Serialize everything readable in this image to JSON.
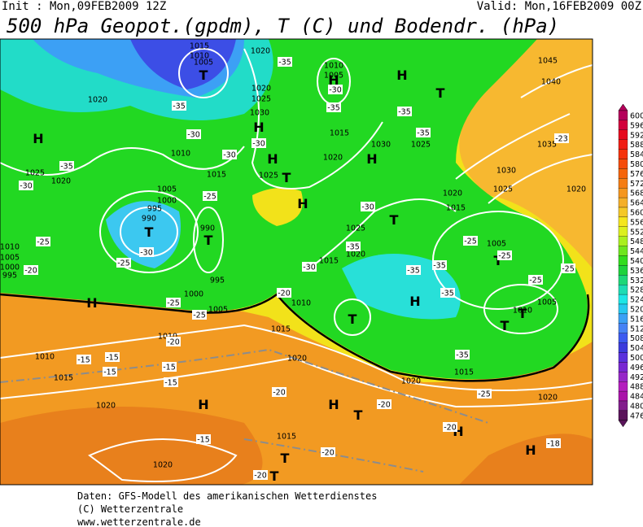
{
  "header": {
    "init": "Init : Mon,09FEB2009 12Z",
    "valid": "Valid: Mon,16FEB2009 00Z",
    "title": "500 hPa Geopot.(gpdm), T (C) und Bodendr. (hPa)"
  },
  "map": {
    "labels": [
      "H",
      "H",
      "T",
      "T",
      "T",
      "H",
      "H",
      "T",
      "H",
      "H",
      "H",
      "T",
      "H",
      "T",
      "T",
      "T",
      "H",
      "T",
      "T",
      "H",
      "H",
      "T",
      "H",
      "T",
      "T",
      "H",
      "1015",
      "1010",
      "1005",
      "1020",
      "1010",
      "1005",
      "1020",
      "1010",
      "1015",
      "1025",
      "1005",
      "1000",
      "995",
      "990",
      "990",
      "995",
      "1000",
      "1005",
      "1010",
      "1010",
      "1015",
      "1020",
      "1020",
      "1015",
      "1010",
      "1015",
      "1020",
      "1015",
      "1005",
      "1005",
      "1010",
      "1015",
      "1020",
      "1020",
      "1020",
      "1015",
      "1030",
      "1035",
      "1040",
      "1045",
      "1025",
      "1020",
      "1025",
      "1020",
      "1010",
      "1005",
      "1000",
      "995",
      "1030",
      "1025",
      "1020",
      "1015",
      "1020",
      "1030",
      "1025",
      "1025",
      "1020",
      "-35",
      "-35",
      "-30",
      "-30",
      "-25",
      "-30",
      "-25",
      "-25",
      "-20",
      "-35",
      "-30",
      "-25",
      "-25",
      "-20",
      "-15",
      "-15",
      "-15",
      "-15",
      "-15",
      "-20",
      "-15",
      "-20",
      "-20",
      "-20",
      "-20",
      "-18",
      "-25",
      "-35",
      "-35",
      "-35",
      "-35",
      "-25",
      "-25",
      "-25",
      "-25",
      "-30",
      "-20",
      "-35",
      "-35",
      "-35",
      "-30",
      "-30",
      "-30",
      "-35",
      "-23"
    ]
  },
  "colorbar": {
    "labels": [
      600,
      596,
      592,
      588,
      584,
      580,
      576,
      572,
      568,
      564,
      560,
      556,
      552,
      548,
      544,
      540,
      536,
      532,
      528,
      524,
      520,
      516,
      512,
      508,
      504,
      500,
      496,
      492,
      488,
      484,
      480,
      476
    ],
    "colors": [
      "#b4005a",
      "#d2003c",
      "#e60a1e",
      "#f01e14",
      "#f5320a",
      "#f54b0a",
      "#f5640a",
      "#f57d14",
      "#f5961e",
      "#f5af28",
      "#f5c828",
      "#f5e61e",
      "#dcf01e",
      "#aaf01e",
      "#6ee61e",
      "#32dc1e",
      "#1ed23c",
      "#1ed778",
      "#1edcb4",
      "#1ee6e6",
      "#28c8f0",
      "#3ca0f5",
      "#4682f5",
      "#3c5af0",
      "#3c3cdc",
      "#5a32dc",
      "#7828d2",
      "#9628c8",
      "#b41ebe",
      "#aa14aa",
      "#821e8c",
      "#5a145a"
    ]
  },
  "footer": {
    "lines": [
      "Daten: GFS-Modell des amerikanischen Wetterdienstes",
      "(C) Wetterzentrale",
      "www.wetterzentrale.de"
    ]
  }
}
